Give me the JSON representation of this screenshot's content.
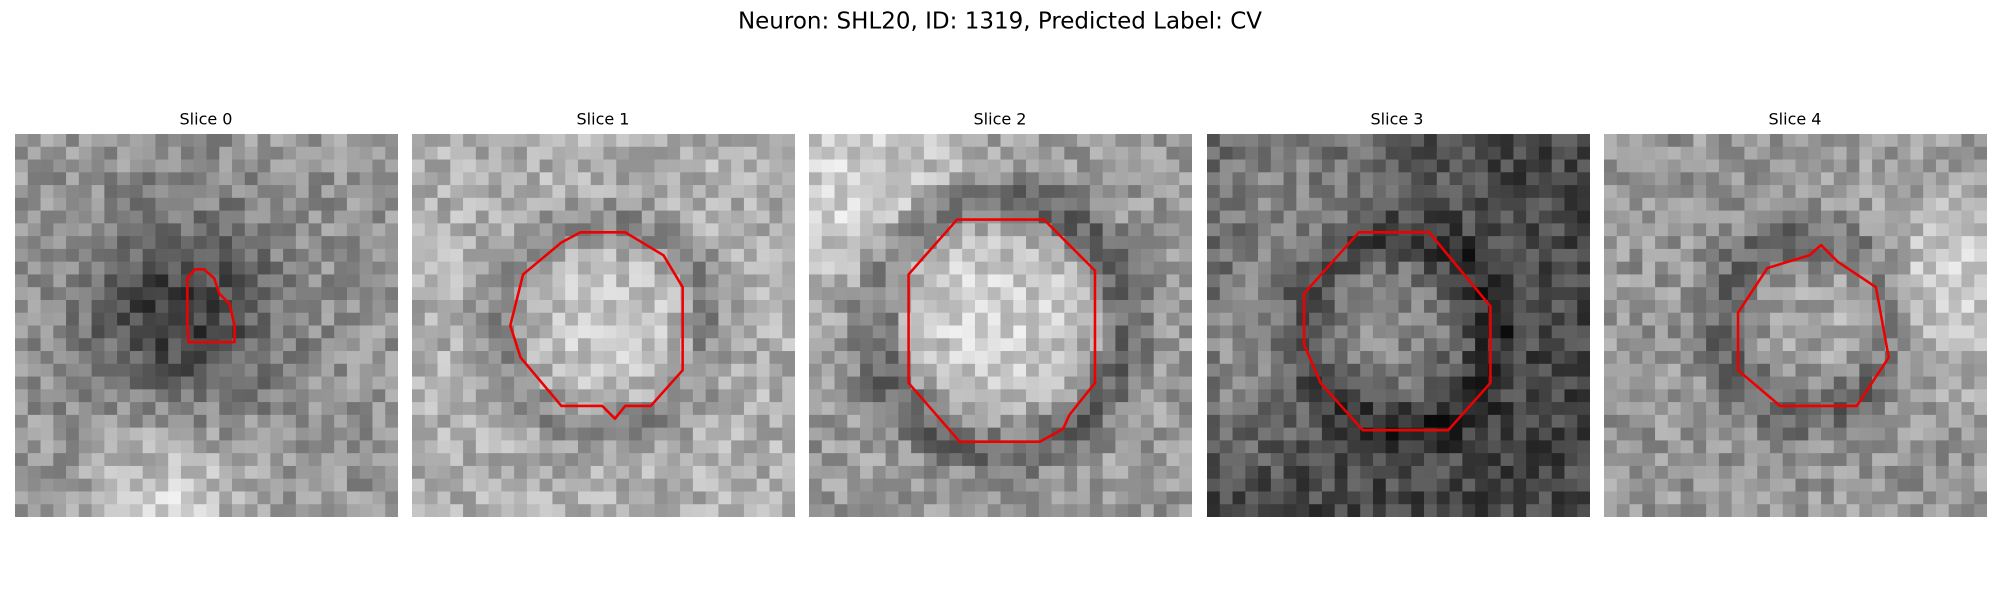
{
  "title": "Neuron: SHL20, ID: 1319, Predicted Label: CV",
  "panels": [
    {
      "title": "Slice 0"
    },
    {
      "title": "Slice 1"
    },
    {
      "title": "Slice 2"
    },
    {
      "title": "Slice 3"
    },
    {
      "title": "Slice 4"
    }
  ]
}
